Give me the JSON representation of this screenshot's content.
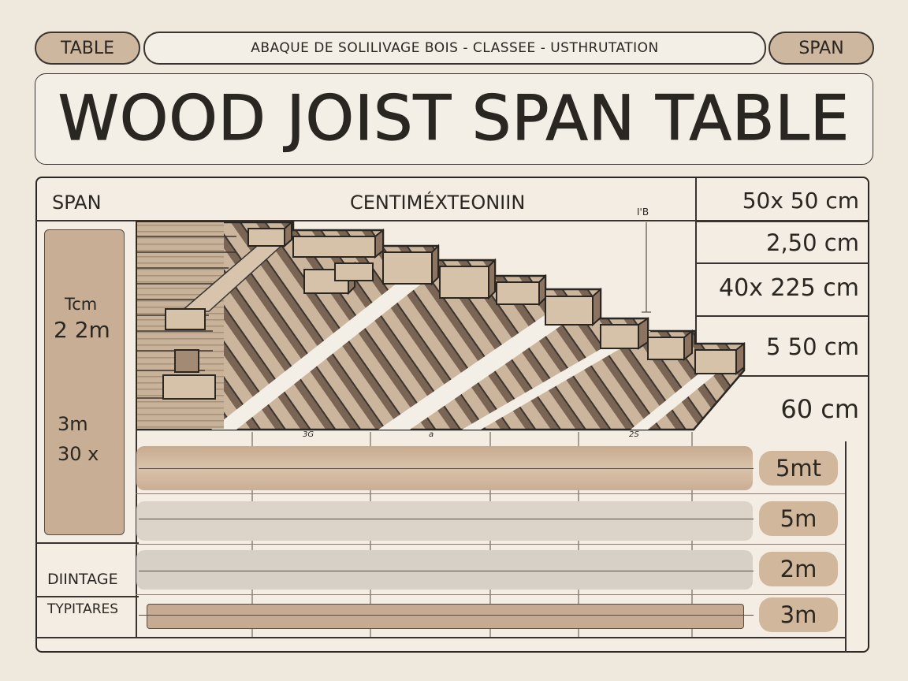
{
  "header": {
    "left_pill": "TABLE",
    "subtitle": "ABAQUE DE SOLILIVAGE BOIS  -  CLASSEE  -  USTHRUTATION",
    "right_pill": "SPAN"
  },
  "title": "WOOD JOIST SPAN TABLE",
  "table": {
    "corner_label": "SPAN",
    "column_header": "CENTIMÉXTEONIIN",
    "marker_label": "I'B",
    "left_panel": {
      "top_line1": "Tcm",
      "top_line2": "2 2m",
      "bottom_line1": "3m",
      "bottom_line2": "30 x"
    },
    "side_values": [
      "50x 50 cm",
      "2,50 cm",
      "40x 225 cm",
      "5 50 cm",
      "60 cm"
    ],
    "tick_labels": [
      "3G",
      "a",
      "2S"
    ],
    "row_badges": [
      "5mt",
      "5m",
      "2m",
      "3m"
    ],
    "footer_labels": [
      "DIINTAGE",
      "TYPITARES"
    ]
  },
  "colors": {
    "background": "#efe8dc",
    "wood_light": "#cbb59d",
    "wood_dark": "#7a6454",
    "outline": "#2a2622",
    "badge": "#d1b79b"
  }
}
